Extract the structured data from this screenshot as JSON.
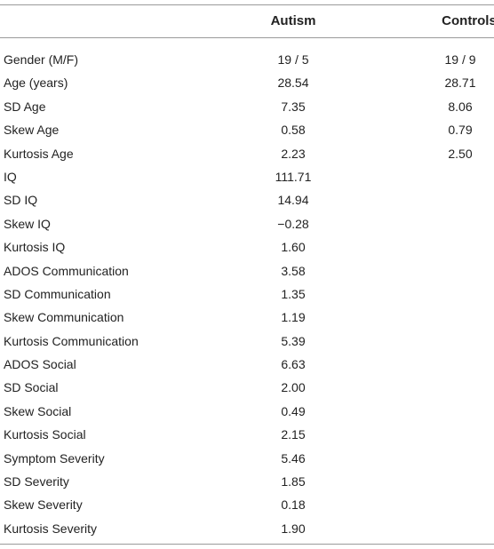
{
  "table": {
    "headers": {
      "label": "",
      "autism": "Autism",
      "controls": "Controls"
    },
    "rows": [
      {
        "label": "Gender (M/F)",
        "autism": "19 / 5",
        "controls": "19 / 9"
      },
      {
        "label": "Age (years)",
        "autism": "28.54",
        "controls": "28.71"
      },
      {
        "label": "SD Age",
        "autism": "7.35",
        "controls": "8.06"
      },
      {
        "label": "Skew Age",
        "autism": "0.58",
        "controls": "0.79"
      },
      {
        "label": "Kurtosis Age",
        "autism": "2.23",
        "controls": "2.50"
      },
      {
        "label": "IQ",
        "autism": "111.71",
        "controls": ""
      },
      {
        "label": "SD IQ",
        "autism": "14.94",
        "controls": ""
      },
      {
        "label": "Skew IQ",
        "autism": "−0.28",
        "controls": ""
      },
      {
        "label": "Kurtosis IQ",
        "autism": "1.60",
        "controls": ""
      },
      {
        "label": "ADOS Communication",
        "autism": "3.58",
        "controls": ""
      },
      {
        "label": "SD Communication",
        "autism": "1.35",
        "controls": ""
      },
      {
        "label": "Skew Communication",
        "autism": "1.19",
        "controls": ""
      },
      {
        "label": "Kurtosis Communication",
        "autism": "5.39",
        "controls": ""
      },
      {
        "label": "ADOS Social",
        "autism": "6.63",
        "controls": ""
      },
      {
        "label": "SD Social",
        "autism": "2.00",
        "controls": ""
      },
      {
        "label": "Skew Social",
        "autism": "0.49",
        "controls": ""
      },
      {
        "label": "Kurtosis Social",
        "autism": "2.15",
        "controls": ""
      },
      {
        "label": "Symptom Severity",
        "autism": "5.46",
        "controls": ""
      },
      {
        "label": "SD Severity",
        "autism": "1.85",
        "controls": ""
      },
      {
        "label": "Skew Severity",
        "autism": "0.18",
        "controls": ""
      },
      {
        "label": "Kurtosis Severity",
        "autism": "1.90",
        "controls": ""
      }
    ]
  }
}
